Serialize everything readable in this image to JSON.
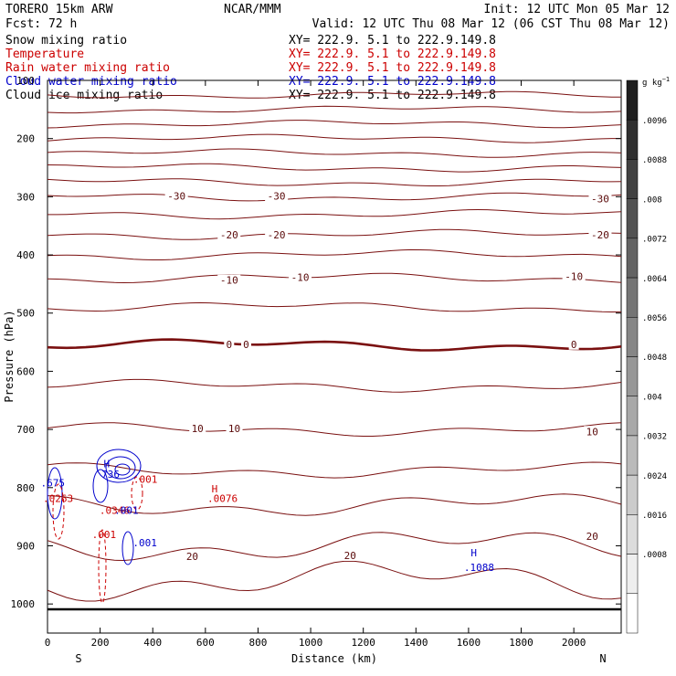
{
  "header": {
    "model": "TORERO  15km ARW",
    "center": "NCAR/MMM",
    "init": "Init: 12 UTC Mon 05 Mar 12",
    "fcst": "Fcst:   72 h",
    "valid": "Valid: 12 UTC Thu 08 Mar 12 (06 CST Thu 08 Mar 12)"
  },
  "fields": [
    {
      "name": "Snow mixing ratio",
      "xy": "XY= 222.9.  5.1 to 222.9.149.8",
      "color": "#000000"
    },
    {
      "name": "Temperature",
      "xy": "XY= 222.9.  5.1 to 222.9.149.8",
      "color": "#cc0000"
    },
    {
      "name": "Rain water mixing ratio",
      "xy": "XY= 222.9.  5.1 to 222.9.149.8",
      "color": "#cc0000"
    },
    {
      "name": "Cloud water mixing ratio",
      "xy": "XY= 222.9.  5.1 to 222.9.149.8",
      "color": "#0000cc"
    },
    {
      "name": "Cloud ice mixing ratio",
      "xy": "XY= 222.9.  5.1 to 222.9.149.8",
      "color": "#000000"
    }
  ],
  "chart_data": {
    "type": "cross-section contour",
    "xlabel": "Distance (km)",
    "ylabel": "Pressure (hPa)",
    "xlim": [
      0,
      2180
    ],
    "ylim": [
      1050,
      100
    ],
    "xticks": [
      0,
      200,
      400,
      600,
      800,
      1000,
      1200,
      1400,
      1600,
      1800,
      2000
    ],
    "yticks": [
      100,
      200,
      300,
      400,
      500,
      600,
      700,
      800,
      900,
      1000
    ],
    "endpoints": {
      "left": "S",
      "right": "N"
    },
    "colorbar": {
      "unit": "g kg",
      "ticks": [
        ".0096",
        ".0088",
        ".008",
        ".0072",
        ".0064",
        ".0056",
        ".0048",
        ".004",
        ".0032",
        ".0024",
        ".0016",
        ".0008"
      ]
    },
    "temperature_levels": [
      {
        "p": 125,
        "t": null
      },
      {
        "p": 150,
        "t": null
      },
      {
        "p": 175,
        "t": null
      },
      {
        "p": 200,
        "t": null
      },
      {
        "p": 225,
        "t": null
      },
      {
        "p": 250,
        "t": null
      },
      {
        "p": 275,
        "t": null
      },
      {
        "p": 300,
        "t": -30
      },
      {
        "p": 330,
        "t": null
      },
      {
        "p": 365,
        "t": -20
      },
      {
        "p": 400,
        "t": null
      },
      {
        "p": 440,
        "t": -10
      },
      {
        "p": 490,
        "t": null
      },
      {
        "p": 555,
        "t": 0
      },
      {
        "p": 625,
        "t": null
      },
      {
        "p": 700,
        "t": 10
      },
      {
        "p": 770,
        "t": null
      },
      {
        "p": 830,
        "t": null
      },
      {
        "p": 900,
        "t": 20
      },
      {
        "p": 960,
        "t": null
      }
    ],
    "temperature_labels": [
      {
        "x": 490,
        "p": 300,
        "text": "-30"
      },
      {
        "x": 870,
        "p": 300,
        "text": "-30"
      },
      {
        "x": 2100,
        "p": 305,
        "text": "-30"
      },
      {
        "x": 690,
        "p": 367,
        "text": "-20"
      },
      {
        "x": 870,
        "p": 367,
        "text": "-20"
      },
      {
        "x": 2100,
        "p": 367,
        "text": "-20"
      },
      {
        "x": 690,
        "p": 445,
        "text": "-10"
      },
      {
        "x": 960,
        "p": 440,
        "text": "-10"
      },
      {
        "x": 2000,
        "p": 438,
        "text": "-10"
      },
      {
        "x": 690,
        "p": 555,
        "text": "0"
      },
      {
        "x": 755,
        "p": 555,
        "text": "0"
      },
      {
        "x": 2000,
        "p": 555,
        "text": "0"
      },
      {
        "x": 570,
        "p": 700,
        "text": "10"
      },
      {
        "x": 710,
        "p": 700,
        "text": "10"
      },
      {
        "x": 2070,
        "p": 705,
        "text": "10"
      },
      {
        "x": 550,
        "p": 920,
        "text": "20"
      },
      {
        "x": 1150,
        "p": 918,
        "text": "20"
      },
      {
        "x": 2070,
        "p": 885,
        "text": "20"
      }
    ],
    "annotations": [
      {
        "x": 225,
        "p": 765,
        "text": "H",
        "color": "#0000cc"
      },
      {
        "x": 240,
        "p": 783,
        "text": "736",
        "color": "#0000cc"
      },
      {
        "x": 372,
        "p": 792,
        "text": ".001",
        "color": "#cc0000"
      },
      {
        "x": 20,
        "p": 798,
        "text": ".675",
        "color": "#0000cc"
      },
      {
        "x": 40,
        "p": 825,
        "text": ".0263",
        "color": "#cc0000"
      },
      {
        "x": 255,
        "p": 845,
        "text": ".0346",
        "color": "#cc0000"
      },
      {
        "x": 300,
        "p": 845,
        "text": ".001",
        "color": "#0000cc"
      },
      {
        "x": 215,
        "p": 887,
        "text": ".001",
        "color": "#cc0000"
      },
      {
        "x": 370,
        "p": 901,
        "text": ".001",
        "color": "#0000cc"
      },
      {
        "x": 635,
        "p": 808,
        "text": "H",
        "color": "#cc0000"
      },
      {
        "x": 665,
        "p": 825,
        "text": ".0076",
        "color": "#cc0000"
      },
      {
        "x": 1620,
        "p": 918,
        "text": "H",
        "color": "#0000cc"
      },
      {
        "x": 1640,
        "p": 943,
        "text": ".1088",
        "color": "#0000cc"
      }
    ]
  }
}
